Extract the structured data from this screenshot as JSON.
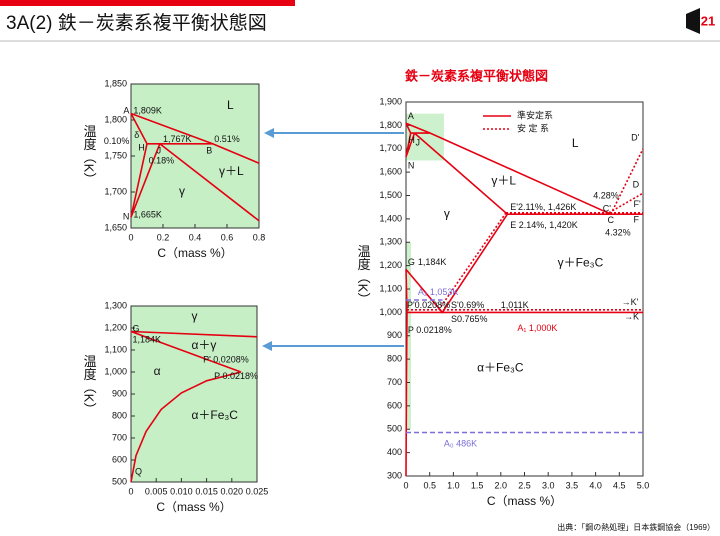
{
  "header": {
    "title": "3A(2)  鉄－炭素系複平衡状態図",
    "logo": "21"
  },
  "footer": "出典：「鋼の熱処理」日本鉄鋼協会（1969）",
  "chart_data": [
    {
      "type": "line",
      "title": "鉄－炭素系複平衡状態図",
      "xlabel": "C（mass %）",
      "ylabel": "温度（K）",
      "xlim": [
        0,
        5
      ],
      "ylim": [
        300,
        1900
      ],
      "xticks": [
        0,
        0.5,
        {
          "value": 1,
          "label": "1.0"
        },
        1.5,
        {
          "value": 2,
          "label": "2.0"
        },
        2.5,
        {
          "value": 3,
          "label": "3.0"
        },
        3.5,
        {
          "value": 4,
          "label": "4.0"
        },
        4.5,
        {
          "value": 5,
          "label": "5.0"
        }
      ],
      "yticks": [
        300,
        400,
        500,
        600,
        700,
        800,
        900,
        {
          "value": 1000,
          "label": "1,000"
        },
        {
          "value": 1100,
          "label": "1,100"
        },
        {
          "value": 1200,
          "label": "1,200"
        },
        {
          "value": 1300,
          "label": "1,300"
        },
        {
          "value": 1400,
          "label": "1,400"
        },
        {
          "value": 1500,
          "label": "1,500"
        },
        {
          "value": 1600,
          "label": "1,600"
        },
        {
          "value": 1700,
          "label": "1,700"
        },
        {
          "value": 1800,
          "label": "1,800"
        },
        {
          "value": 1900,
          "label": "1,900"
        }
      ],
      "legend": "upper right",
      "series": [
        {
          "name": "準安定系",
          "color": "#e60012",
          "dash": "solid",
          "x": [
            0,
            0.51,
            4.32,
            null,
            0,
            0.1,
            null,
            0.1,
            0.51,
            null,
            0.1,
            0,
            null,
            0.18,
            0,
            null,
            0.18,
            2.14,
            5,
            null,
            0,
            0.765,
            2.14,
            null,
            0.0218,
            5,
            null,
            0,
            0.0218,
            null,
            0.0218,
            0.01,
            0
          ],
          "values": [
            1809,
            1767,
            1420,
            null,
            1809,
            1767,
            null,
            1767,
            1767,
            null,
            1767,
            1665,
            null,
            1767,
            1665,
            null,
            1767,
            1420,
            1420,
            null,
            1184,
            1000,
            1420,
            null,
            1000,
            1000,
            null,
            1184,
            1000,
            null,
            1000,
            750,
            300
          ]
        },
        {
          "name": "安 定 系",
          "color": "#e60012",
          "dash": "dotted",
          "x": [
            2.11,
            5,
            null,
            0.69,
            2.11,
            null,
            0.0208,
            5,
            null,
            4.28,
            5,
            null,
            4.32,
            5
          ],
          "values": [
            1426,
            1426,
            null,
            1011,
            1426,
            null,
            1011,
            1011,
            null,
            1426,
            1510,
            null,
            1420,
            1700
          ]
        },
        {
          "color": "#7b6fd6",
          "dash": "dashed",
          "x": [
            0,
            5,
            null,
            0,
            0.77
          ],
          "values": [
            486,
            486,
            null,
            1053,
            1053
          ]
        }
      ],
      "annotations": [
        "L",
        "γ＋L",
        "γ",
        "γ＋Fe₃C",
        "α＋Fe₃C",
        "E'2.11%, 1,426K",
        "E 2.14%, 1,420K",
        "4.28%",
        "C'",
        "C",
        "4.32%",
        "D'",
        "D",
        "F'",
        "F",
        "→K'",
        "→K",
        "G",
        "1,184K",
        "A₂ 1,053K",
        "P'0.0208%",
        "S'0.69%",
        "1,011K",
        "S0.765%",
        "P 0.0218%",
        "A₁ 1,000K",
        "A₀  486K",
        "A",
        "H",
        "J",
        "N"
      ]
    },
    {
      "type": "line",
      "xlabel": "C（mass %）",
      "ylabel": "温度（K）",
      "background": "#c6efc6",
      "xlim": [
        0,
        0.8
      ],
      "ylim": [
        1650,
        1850
      ],
      "xticks": [
        0,
        0.2,
        0.4,
        0.6,
        0.8
      ],
      "yticks": [
        {
          "value": 1650,
          "label": "1,650"
        },
        {
          "value": 1700,
          "label": "1,700"
        },
        {
          "value": 1750,
          "label": "1,750"
        },
        {
          "value": 1800,
          "label": "1,800"
        },
        {
          "value": 1850,
          "label": "1,850"
        }
      ],
      "series": [
        {
          "color": "#e60012",
          "dash": "solid",
          "x": [
            0,
            0.51,
            0.8,
            null,
            0,
            0.1,
            null,
            0.1,
            0.51,
            null,
            0.1,
            0,
            null,
            0.18,
            0,
            null,
            0.18,
            0.8
          ],
          "values": [
            1809,
            1767,
            1740,
            null,
            1809,
            1767,
            null,
            1767,
            1767,
            null,
            1767,
            1665,
            null,
            1767,
            1665,
            null,
            1767,
            1660
          ]
        }
      ],
      "annotations": [
        "A",
        "1,809K",
        "L",
        "δ",
        "0.10%",
        "H",
        "1,767K",
        "0.51%",
        "J",
        "B",
        "0.18%",
        "γ＋L",
        "γ",
        "N",
        "1,665K"
      ]
    },
    {
      "type": "line",
      "xlabel": "C（mass %）",
      "ylabel": "温度（K）",
      "background": "#c6efc6",
      "xlim": [
        0,
        0.025
      ],
      "ylim": [
        500,
        1300
      ],
      "xticks": [
        0,
        0.005,
        {
          "value": 0.01,
          "label": "0.010"
        },
        0.015,
        {
          "value": 0.02,
          "label": "0.020"
        },
        0.025
      ],
      "yticks": [
        500,
        600,
        700,
        800,
        900,
        {
          "value": 1000,
          "label": "1,000"
        },
        {
          "value": 1100,
          "label": "1,100"
        },
        {
          "value": 1200,
          "label": "1,200"
        },
        {
          "value": 1300,
          "label": "1,300"
        }
      ],
      "series": [
        {
          "color": "#e60012",
          "dash": "solid",
          "x": [
            0,
            0.025,
            null,
            0,
            0.0218,
            null,
            0.0218,
            0.015,
            0.01,
            0.006,
            0.003,
            0.001,
            0
          ],
          "values": [
            1184,
            1160,
            null,
            1184,
            1000,
            null,
            1000,
            960,
            905,
            830,
            730,
            620,
            500
          ]
        }
      ],
      "annotations": [
        "γ",
        "G",
        "α＋γ",
        "1,184K",
        "P' 0.0208%",
        "P 0.0218%",
        "α",
        "α＋Fe₃C",
        "Q"
      ]
    }
  ]
}
